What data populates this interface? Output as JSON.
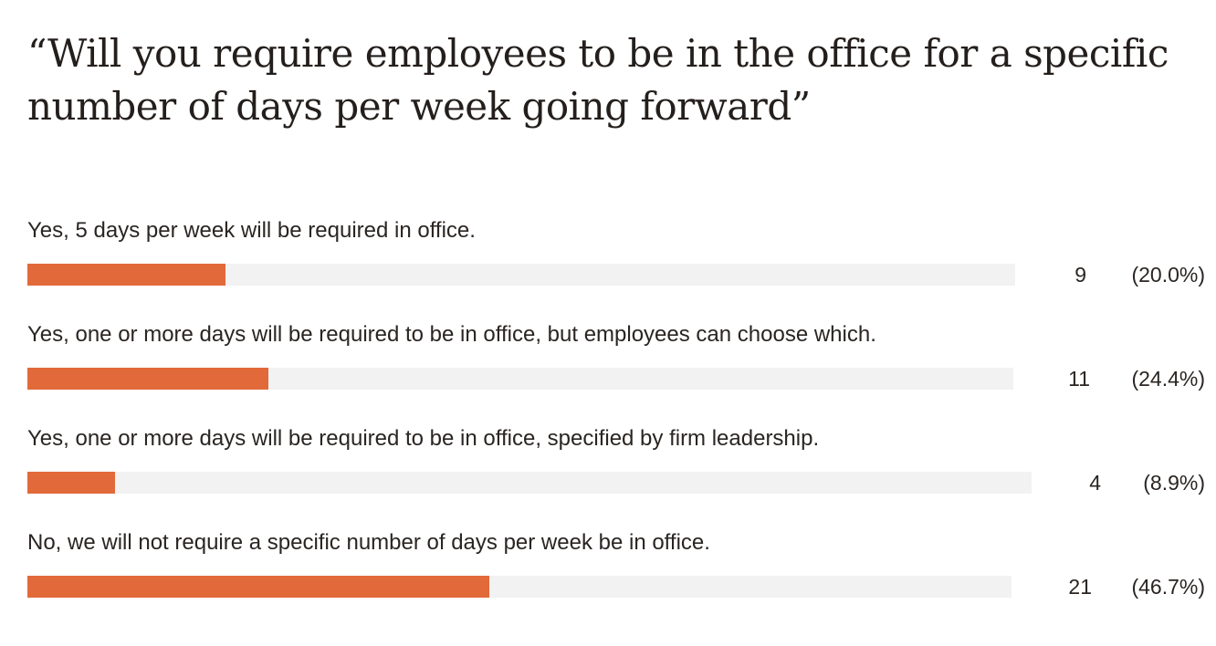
{
  "chart_data": {
    "type": "bar",
    "orientation": "horizontal",
    "title": "“Will you require employees to be in the office for a specific number of days per week going forward”",
    "categories": [
      "Yes, 5 days per week will be required in office.",
      "Yes, one or more days will be required to be in office, but employees can choose which.",
      "Yes, one or more days will be required to be in office, specified by firm leadership.",
      "No, we will not require a specific number of days per week be in office."
    ],
    "values": [
      9,
      11,
      4,
      21
    ],
    "percent_labels": [
      "(20.0%)",
      "(24.4%)",
      "(8.9%)",
      "(46.7%)"
    ],
    "percents": [
      20.0,
      24.4,
      8.9,
      46.7
    ],
    "xlim": [
      0,
      100
    ],
    "bar_color": "#e2693a",
    "track_color": "#f2f2f2",
    "grid": false,
    "legend": "none"
  }
}
